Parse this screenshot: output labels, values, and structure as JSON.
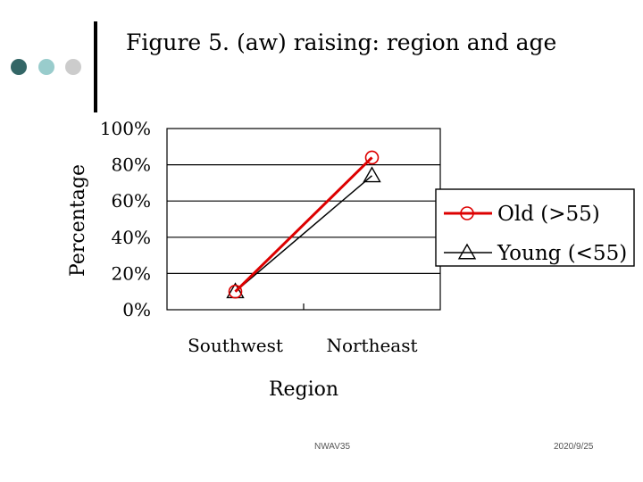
{
  "slide": {
    "title": "Figure 5. (aw) raising: region and age",
    "footer_center": "NWAV35",
    "footer_date": "2020/9/25"
  },
  "colors": {
    "bullet_1": "#336666",
    "bullet_2": "#99cccc",
    "bullet_3": "#cccccc",
    "series_old": "#dd0000",
    "series_young": "#000000",
    "gridline": "#000000"
  },
  "chart_data": {
    "type": "line",
    "categories": [
      "Southwest",
      "Northeast"
    ],
    "xlabel": "Region",
    "ylabel": "Percentage",
    "ylim": [
      0,
      100
    ],
    "yticks": [
      "0%",
      "20%",
      "40%",
      "60%",
      "80%",
      "100%"
    ],
    "grid": true,
    "legend_position": "right",
    "series": [
      {
        "name": "Old (>55)",
        "marker": "circle",
        "values": [
          10,
          84
        ]
      },
      {
        "name": "Young (<55)",
        "marker": "triangle",
        "values": [
          10,
          74
        ]
      }
    ]
  }
}
